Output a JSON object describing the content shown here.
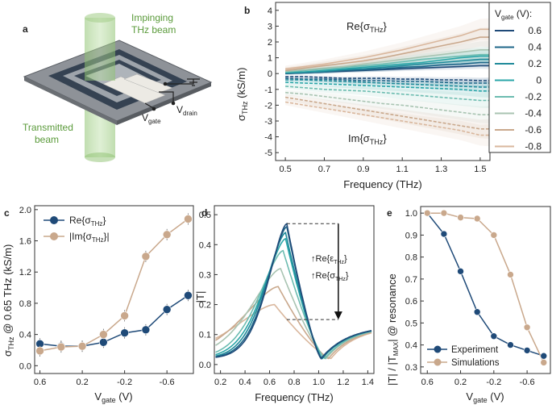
{
  "colors": {
    "navy": "#1f4a78",
    "tan": "#c9a88c",
    "teal_palette": [
      "#1f4a78",
      "#1d6688",
      "#1f8a9a",
      "#2aa6a8",
      "#6cbcb0",
      "#a9c4b2",
      "#c9a88c",
      "#d9b79d"
    ],
    "axis": "#333333",
    "device_green": "#78b55a"
  },
  "panels": {
    "a": {
      "label": "a",
      "impinging": "Impinging",
      "thz_beam": "THz beam",
      "transmitted": "Transmitted",
      "beam": "beam",
      "v_main": "V",
      "v_gate_sub": "gate",
      "v_drain_sub": "drain"
    },
    "b": {
      "label": "b"
    },
    "c": {
      "label": "c"
    },
    "d": {
      "label": "d"
    },
    "e": {
      "label": "e"
    }
  },
  "chart_data": [
    {
      "id": "b",
      "type": "line",
      "xlabel": "Frequency (THz)",
      "ylabel_main": "σ",
      "ylabel_sub": "THz",
      "ylabel_unit": " (kS/m)",
      "xlim": [
        0.45,
        1.55
      ],
      "ylim": [
        -5.5,
        4.5
      ],
      "xticks": [
        "0.5",
        "0.7",
        "0.9",
        "1.1",
        "1.3",
        "1.5"
      ],
      "yticks": [
        "-5",
        "-4",
        "-3",
        "-2",
        "-1",
        "0",
        "1",
        "2",
        "3",
        "4"
      ],
      "annotation_re": "Re{σ",
      "annotation_im": "Im{σ",
      "annotation_sub": "THz",
      "annotation_close": "}",
      "legend_title_main": "V",
      "legend_title_sub": "gate",
      "legend_title_rest": " (V):",
      "x": [
        0.5,
        0.6,
        0.7,
        0.8,
        0.9,
        1.0,
        1.1,
        1.2,
        1.3,
        1.4,
        1.5,
        1.55
      ],
      "series": [
        {
          "name": "0.6",
          "re": [
            0.0,
            0.05,
            0.1,
            0.15,
            0.2,
            0.25,
            0.3,
            0.35,
            0.4,
            0.45,
            0.5,
            0.5
          ],
          "im": [
            -0.2,
            -0.2,
            -0.25,
            -0.3,
            -0.3,
            -0.3,
            -0.35,
            -0.35,
            -0.4,
            -0.4,
            -0.45,
            -0.45
          ]
        },
        {
          "name": "0.4",
          "re": [
            0.0,
            0.05,
            0.1,
            0.2,
            0.25,
            0.3,
            0.4,
            0.45,
            0.55,
            0.6,
            0.7,
            0.7
          ],
          "im": [
            -0.3,
            -0.35,
            -0.35,
            -0.4,
            -0.45,
            -0.45,
            -0.5,
            -0.5,
            -0.55,
            -0.6,
            -0.6,
            -0.6
          ]
        },
        {
          "name": "0.2",
          "re": [
            0.05,
            0.1,
            0.15,
            0.25,
            0.3,
            0.4,
            0.5,
            0.6,
            0.7,
            0.8,
            0.9,
            0.9
          ],
          "im": [
            -0.4,
            -0.4,
            -0.45,
            -0.5,
            -0.55,
            -0.6,
            -0.65,
            -0.7,
            -0.75,
            -0.8,
            -0.85,
            -0.85
          ]
        },
        {
          "name": "0",
          "re": [
            0.05,
            0.1,
            0.2,
            0.3,
            0.4,
            0.5,
            0.6,
            0.7,
            0.85,
            1.0,
            1.1,
            1.1
          ],
          "im": [
            -0.55,
            -0.6,
            -0.65,
            -0.7,
            -0.75,
            -0.8,
            -0.85,
            -0.9,
            -0.95,
            -1.0,
            -1.1,
            -1.1
          ]
        },
        {
          "name": "-0.2",
          "re": [
            0.1,
            0.2,
            0.3,
            0.4,
            0.5,
            0.6,
            0.75,
            0.9,
            1.0,
            1.1,
            1.2,
            1.2
          ],
          "im": [
            -0.8,
            -0.9,
            -1.0,
            -1.05,
            -1.1,
            -1.2,
            -1.3,
            -1.4,
            -1.5,
            -1.6,
            -1.7,
            -1.7
          ]
        },
        {
          "name": "-0.4",
          "re": [
            0.15,
            0.25,
            0.35,
            0.45,
            0.6,
            0.75,
            0.9,
            1.05,
            1.2,
            1.35,
            1.5,
            1.5
          ],
          "im": [
            -1.2,
            -1.3,
            -1.45,
            -1.6,
            -1.75,
            -1.9,
            -2.0,
            -2.15,
            -2.3,
            -2.45,
            -2.6,
            -2.6
          ]
        },
        {
          "name": "-0.6",
          "re": [
            0.2,
            0.35,
            0.5,
            0.65,
            0.8,
            1.0,
            1.25,
            1.5,
            1.75,
            2.0,
            2.3,
            2.3
          ],
          "im": [
            -1.5,
            -1.7,
            -1.9,
            -2.1,
            -2.3,
            -2.5,
            -2.7,
            -2.9,
            -3.1,
            -3.3,
            -3.5,
            -3.5
          ]
        },
        {
          "name": "-0.8",
          "re": [
            0.3,
            0.45,
            0.6,
            0.8,
            1.0,
            1.25,
            1.5,
            1.8,
            2.1,
            2.4,
            2.8,
            2.8
          ],
          "im": [
            -1.8,
            -2.0,
            -2.2,
            -2.4,
            -2.6,
            -2.8,
            -3.0,
            -3.2,
            -3.4,
            -3.6,
            -3.9,
            -3.9
          ]
        }
      ]
    },
    {
      "id": "c",
      "type": "line",
      "xlabel_main": "V",
      "xlabel_sub": "gate",
      "xlabel_unit": " (V)",
      "ylabel_main": "σ",
      "ylabel_sub": "THz",
      "ylabel_unit": " @ 0.65 THz (kS/m)",
      "xlim": [
        0.65,
        -0.85
      ],
      "ylim": [
        -0.1,
        2.05
      ],
      "xticks": [
        "0.6",
        "0.2",
        "-0.2",
        "-0.6"
      ],
      "yticks": [
        "0.0",
        "0.4",
        "0.8",
        "1.2",
        "1.6",
        "2.0"
      ],
      "legend_re": "Re{σ",
      "legend_im": "|Im{σ",
      "legend_sub": "THz",
      "legend_re_close": "}",
      "legend_im_close": "}|",
      "x": [
        0.6,
        0.4,
        0.2,
        0.0,
        -0.2,
        -0.4,
        -0.6,
        -0.8
      ],
      "series": [
        {
          "name": "Re",
          "values": [
            0.28,
            0.25,
            0.25,
            0.3,
            0.42,
            0.46,
            0.72,
            0.9
          ]
        },
        {
          "name": "Im",
          "values": [
            0.19,
            0.24,
            0.25,
            0.4,
            0.64,
            1.4,
            1.68,
            1.88
          ]
        }
      ]
    },
    {
      "id": "d",
      "type": "line",
      "xlabel": "Frequency (THz)",
      "ylabel": "|T|",
      "xlim": [
        0.15,
        1.45
      ],
      "ylim": [
        -0.03,
        0.53
      ],
      "xticks": [
        "0.2",
        "0.4",
        "0.6",
        "0.8",
        "1.0",
        "1.2",
        "1.4"
      ],
      "yticks": [
        "0.0",
        "0.1",
        "0.2",
        "0.3",
        "0.4",
        "0.5"
      ],
      "arrow_label1": "↑Re{ε",
      "arrow_label2": "↑Re{σ",
      "arrow_label1_sub": "THz",
      "arrow_label2_sub": "THz",
      "arrow_close": "}",
      "peak_top": 0.47,
      "peak_bottom": 0.15,
      "series": [
        {
          "name": "0.6",
          "fpeak": 0.74,
          "peak": 0.47,
          "fmin": 1.02,
          "w": 0.1
        },
        {
          "name": "0.4",
          "fpeak": 0.74,
          "peak": 0.46,
          "fmin": 1.02,
          "w": 0.105
        },
        {
          "name": "0.2",
          "fpeak": 0.73,
          "peak": 0.44,
          "fmin": 1.03,
          "w": 0.11
        },
        {
          "name": "0",
          "fpeak": 0.73,
          "peak": 0.42,
          "fmin": 1.03,
          "w": 0.12
        },
        {
          "name": "-0.2",
          "fpeak": 0.71,
          "peak": 0.38,
          "fmin": 1.05,
          "w": 0.13
        },
        {
          "name": "-0.4",
          "fpeak": 0.69,
          "peak": 0.32,
          "fmin": 1.06,
          "w": 0.16
        },
        {
          "name": "-0.6",
          "fpeak": 0.67,
          "peak": 0.26,
          "fmin": 1.08,
          "w": 0.19
        },
        {
          "name": "-0.8",
          "fpeak": 0.64,
          "peak": 0.2,
          "fmin": 1.1,
          "w": 0.22
        }
      ]
    },
    {
      "id": "e",
      "type": "line",
      "xlabel_main": "V",
      "xlabel_sub": "gate",
      "xlabel_unit": " (V)",
      "ylabel_pre": "|T| / |T",
      "ylabel_sub": "MAX",
      "ylabel_post": "| @ resonance",
      "xlim": [
        0.68,
        -0.88
      ],
      "ylim": [
        0.27,
        1.03
      ],
      "xticks": [
        "0.6",
        "0.2",
        "-0.2",
        "-0.6"
      ],
      "yticks": [
        "0.3",
        "0.4",
        "0.5",
        "0.6",
        "0.7",
        "0.8",
        "0.9",
        "1.0"
      ],
      "legend": [
        "Experiment",
        "Simulations"
      ],
      "x": [
        0.6,
        0.4,
        0.2,
        0.0,
        -0.2,
        -0.4,
        -0.6,
        -0.8
      ],
      "series": [
        {
          "name": "Experiment",
          "values": [
            1.0,
            0.905,
            0.735,
            0.55,
            0.44,
            0.4,
            0.375,
            0.35
          ]
        },
        {
          "name": "Simulations",
          "values": [
            1.0,
            1.0,
            0.98,
            0.975,
            0.9,
            0.72,
            0.48,
            0.32
          ]
        }
      ]
    }
  ]
}
